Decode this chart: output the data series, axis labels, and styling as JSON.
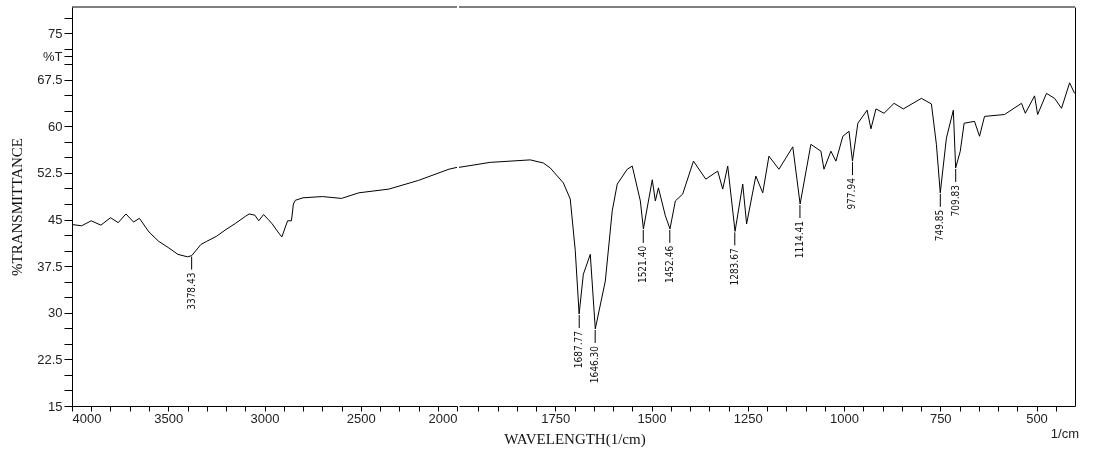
{
  "chart_data": [
    {
      "type": "line",
      "ylabel": "%TRANSMITTANCE",
      "x": [
        4000,
        3950,
        3900,
        3850,
        3800,
        3760,
        3720,
        3680,
        3650,
        3600,
        3550,
        3500,
        3450,
        3400,
        3378,
        3330,
        3300,
        3250,
        3200,
        3150,
        3100,
        3080,
        3050,
        3030,
        3005,
        2980,
        2960,
        2930,
        2910,
        2880,
        2860,
        2850,
        2840,
        2800,
        2700,
        2600,
        2510,
        2354,
        2200,
        2042,
        2000
      ],
      "series": [
        {
          "color": "#000000",
          "values": [
            44.2,
            44.0,
            44.8,
            44.1,
            45.3,
            44.5,
            45.9,
            44.6,
            45.2,
            43.0,
            41.5,
            40.5,
            39.4,
            39.0,
            39.2,
            41.0,
            41.5,
            42.3,
            43.4,
            44.4,
            45.5,
            45.9,
            45.7,
            44.8,
            45.8,
            45.0,
            44.3,
            43.0,
            42.2,
            44.8,
            44.8,
            47.5,
            48.1,
            48.5,
            48.7,
            48.4,
            49.3,
            49.9,
            51.3,
            53.1,
            53.4
          ]
        }
      ],
      "xlim": [
        4000,
        2000
      ],
      "xticks": [
        4000,
        {
          "value": 3900,
          "label": null
        },
        {
          "value": 3800,
          "label": null
        },
        {
          "value": 3700,
          "label": null
        },
        {
          "value": 3600,
          "label": null
        },
        3500,
        {
          "value": 3400,
          "label": null
        },
        {
          "value": 3300,
          "label": null
        },
        {
          "value": 3200,
          "label": null
        },
        {
          "value": 3100,
          "label": null
        },
        3000,
        {
          "value": 2900,
          "label": null
        },
        {
          "value": 2800,
          "label": null
        },
        {
          "value": 2700,
          "label": null
        },
        {
          "value": 2600,
          "label": null
        },
        2500,
        {
          "value": 2400,
          "label": null
        },
        {
          "value": 2300,
          "label": null
        },
        {
          "value": 2200,
          "label": null
        },
        {
          "value": 2100,
          "label": null
        },
        2000
      ],
      "ylim": [
        15,
        79.2
      ],
      "yticks": [
        15,
        {
          "value": 17.5,
          "label": null
        },
        {
          "value": 20,
          "label": null
        },
        22.5,
        {
          "value": 25,
          "label": null
        },
        {
          "value": 27.5,
          "label": null
        },
        30,
        {
          "value": 32.5,
          "label": null
        },
        {
          "value": 35,
          "label": null
        },
        37.5,
        {
          "value": 40,
          "label": null
        },
        {
          "value": 42.5,
          "label": null
        },
        45,
        {
          "value": 47.5,
          "label": null
        },
        {
          "value": 50,
          "label": null
        },
        52.5,
        {
          "value": 55,
          "label": null
        },
        {
          "value": 57.5,
          "label": null
        },
        60,
        {
          "value": 62.5,
          "label": null
        },
        {
          "value": 65,
          "label": null
        },
        67.5,
        {
          "value": 70,
          "label": null
        },
        {
          "value": 71.25,
          "label": "%T"
        },
        {
          "value": 72.5,
          "label": null
        },
        75,
        {
          "value": 77.5,
          "label": null
        }
      ],
      "grid": false,
      "marker": "none",
      "line_style": "solid",
      "annotations": [
        {
          "text": "3378.43",
          "x": 3378.43,
          "y": 39.2
        }
      ]
    },
    {
      "type": "line",
      "xlabel": "WAVELENGTH(1/cm)",
      "x": [
        2000,
        1919,
        1815,
        1781,
        1763,
        1729,
        1711,
        1698,
        1688,
        1677,
        1659,
        1646,
        1620,
        1602,
        1589,
        1563,
        1550,
        1529,
        1521,
        1498,
        1490,
        1482,
        1464,
        1452,
        1438,
        1419,
        1391,
        1359,
        1328,
        1315,
        1302,
        1283,
        1263,
        1253,
        1229,
        1211,
        1195,
        1169,
        1133,
        1114,
        1086,
        1060,
        1052,
        1034,
        1021,
        1003,
        987,
        978,
        964,
        940,
        930,
        917,
        896,
        870,
        846,
        799,
        773,
        760,
        750,
        734,
        716,
        710,
        698,
        688,
        661,
        648,
        635,
        583,
        539,
        529,
        505,
        497,
        474,
        453,
        435,
        414,
        401
      ],
      "series": [
        {
          "color": "#000000",
          "values": [
            53.4,
            54.2,
            54.6,
            54.1,
            53.3,
            50.9,
            48.3,
            40.0,
            29.8,
            36.2,
            39.4,
            27.4,
            35.1,
            46.4,
            50.7,
            53.1,
            53.6,
            48.0,
            43.5,
            51.4,
            48.0,
            50.1,
            45.6,
            43.5,
            48.0,
            49.1,
            54.4,
            51.5,
            52.8,
            49.9,
            53.6,
            43.1,
            50.7,
            44.3,
            52.0,
            49.3,
            55.2,
            53.1,
            56.7,
            47.5,
            57.1,
            56.0,
            53.1,
            56.0,
            54.4,
            58.4,
            59.2,
            54.4,
            60.5,
            62.6,
            59.6,
            62.8,
            62.1,
            63.7,
            62.8,
            64.5,
            63.6,
            57.1,
            49.3,
            58.1,
            62.6,
            53.3,
            56.0,
            60.5,
            60.8,
            58.4,
            61.6,
            61.9,
            63.7,
            62.1,
            64.9,
            61.9,
            65.3,
            64.5,
            62.9,
            67.0,
            65.3
          ]
        }
      ],
      "xlim": [
        2000,
        400
      ],
      "xticks": [
        {
          "value": 1950,
          "label": null
        },
        {
          "value": 1900,
          "label": null
        },
        {
          "value": 1850,
          "label": null
        },
        {
          "value": 1800,
          "label": null
        },
        1750,
        {
          "value": 1700,
          "label": null
        },
        {
          "value": 1650,
          "label": null
        },
        {
          "value": 1600,
          "label": null
        },
        {
          "value": 1550,
          "label": null
        },
        1500,
        {
          "value": 1450,
          "label": null
        },
        {
          "value": 1400,
          "label": null
        },
        {
          "value": 1350,
          "label": null
        },
        {
          "value": 1300,
          "label": null
        },
        1250,
        {
          "value": 1200,
          "label": null
        },
        {
          "value": 1150,
          "label": null
        },
        {
          "value": 1100,
          "label": null
        },
        {
          "value": 1050,
          "label": null
        },
        1000,
        {
          "value": 950,
          "label": null
        },
        {
          "value": 900,
          "label": null
        },
        {
          "value": 850,
          "label": null
        },
        {
          "value": 800,
          "label": null
        },
        750,
        {
          "value": 700,
          "label": null
        },
        {
          "value": 650,
          "label": null
        },
        {
          "value": 600,
          "label": null
        },
        {
          "value": 550,
          "label": null
        },
        500,
        {
          "value": 450,
          "label": null
        }
      ],
      "ylim": [
        15,
        79.2
      ],
      "tick_labels": "x",
      "grid": false,
      "marker": "none",
      "line_style": "solid",
      "annotations": [
        {
          "text": "1687.77",
          "x": 1687.77,
          "y": 29.8
        },
        {
          "text": "1646.30",
          "x": 1646.3,
          "y": 27.4
        },
        {
          "text": "1521.40",
          "x": 1521.4,
          "y": 43.5
        },
        {
          "text": "1452.46",
          "x": 1452.46,
          "y": 43.5
        },
        {
          "text": "1283.67",
          "x": 1283.67,
          "y": 43.1
        },
        {
          "text": "1114.41",
          "x": 1114.41,
          "y": 47.5
        },
        {
          "text": "977.94",
          "x": 977.94,
          "y": 54.4
        },
        {
          "text": "749.85",
          "x": 749.85,
          "y": 49.3
        },
        {
          "text": "709.83",
          "x": 709.83,
          "y": 53.3
        },
        "1/cm"
      ]
    }
  ]
}
